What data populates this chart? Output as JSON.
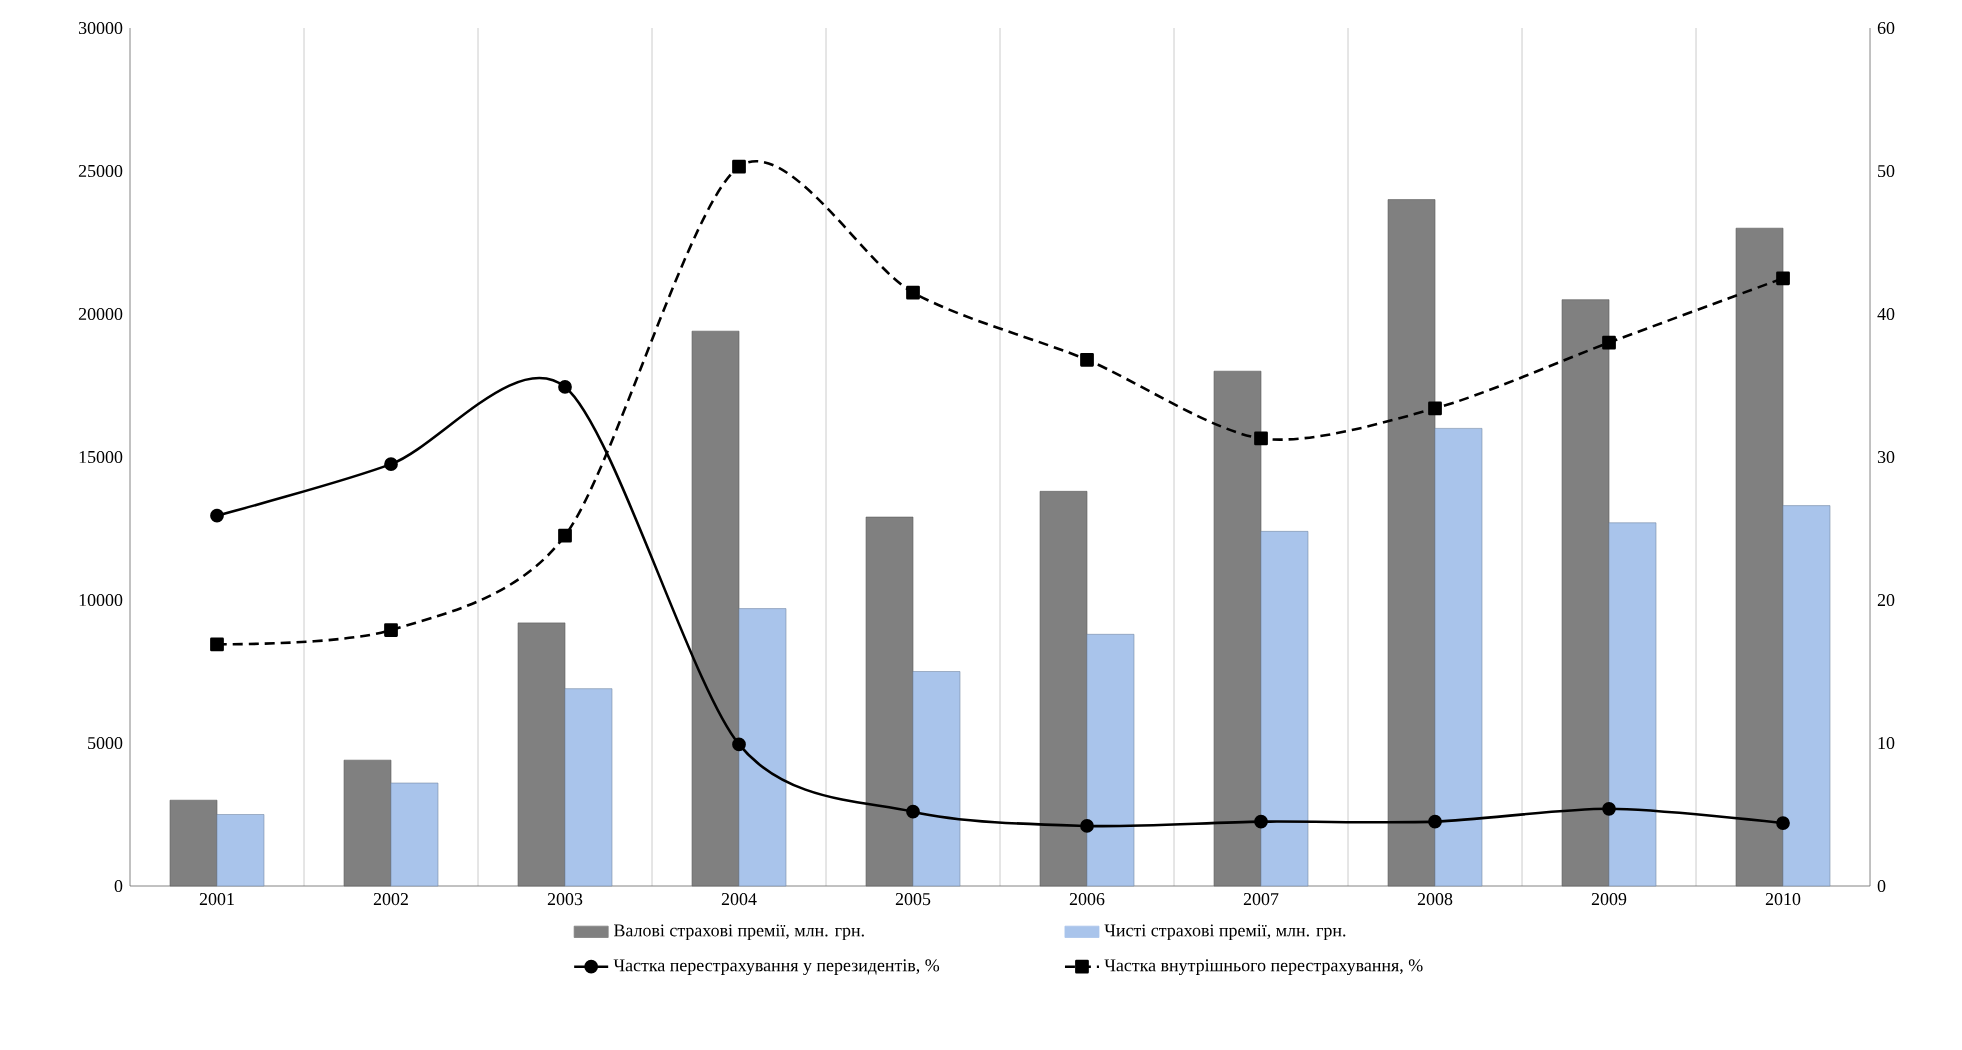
{
  "chart_data": {
    "type": "bar",
    "categories": [
      "2001",
      "2002",
      "2003",
      "2004",
      "2005",
      "2006",
      "2007",
      "2008",
      "2009",
      "2010"
    ],
    "series": [
      {
        "name": "Валові страхові премії, млн. грн.",
        "color": "#808080",
        "values": [
          3000,
          4400,
          9200,
          19400,
          12900,
          13800,
          18000,
          24000,
          20500,
          23000
        ]
      },
      {
        "name": "Чисті страхові премії, млн. грн.",
        "color": "#a9c4eb",
        "values": [
          2500,
          3600,
          6900,
          9700,
          7500,
          8800,
          12400,
          16000,
          12700,
          13300
        ]
      },
      {
        "name": "Частка перестрахування у перезидентів, %",
        "type": "line",
        "axis": "y2",
        "color": "#000000",
        "marker": "circle",
        "line_style": "solid",
        "values": [
          25.9,
          29.5,
          34.9,
          9.9,
          5.2,
          4.2,
          4.5,
          4.5,
          5.4,
          4.4
        ]
      },
      {
        "name": "Частка внутрішнього перестрахування, %",
        "type": "line",
        "axis": "y2",
        "color": "#000000",
        "marker": "square",
        "line_style": "dashed",
        "values": [
          16.9,
          17.9,
          24.5,
          50.3,
          41.5,
          36.8,
          31.3,
          33.4,
          38.0,
          42.5
        ]
      }
    ],
    "ylim": [
      0,
      30000
    ],
    "yticks": [
      0,
      5000,
      10000,
      15000,
      20000,
      25000,
      30000
    ],
    "y2lim": [
      0,
      60
    ],
    "y2ticks": [
      0,
      10,
      20,
      30,
      40,
      50,
      60
    ],
    "grid": "x",
    "legend": "bottom"
  }
}
